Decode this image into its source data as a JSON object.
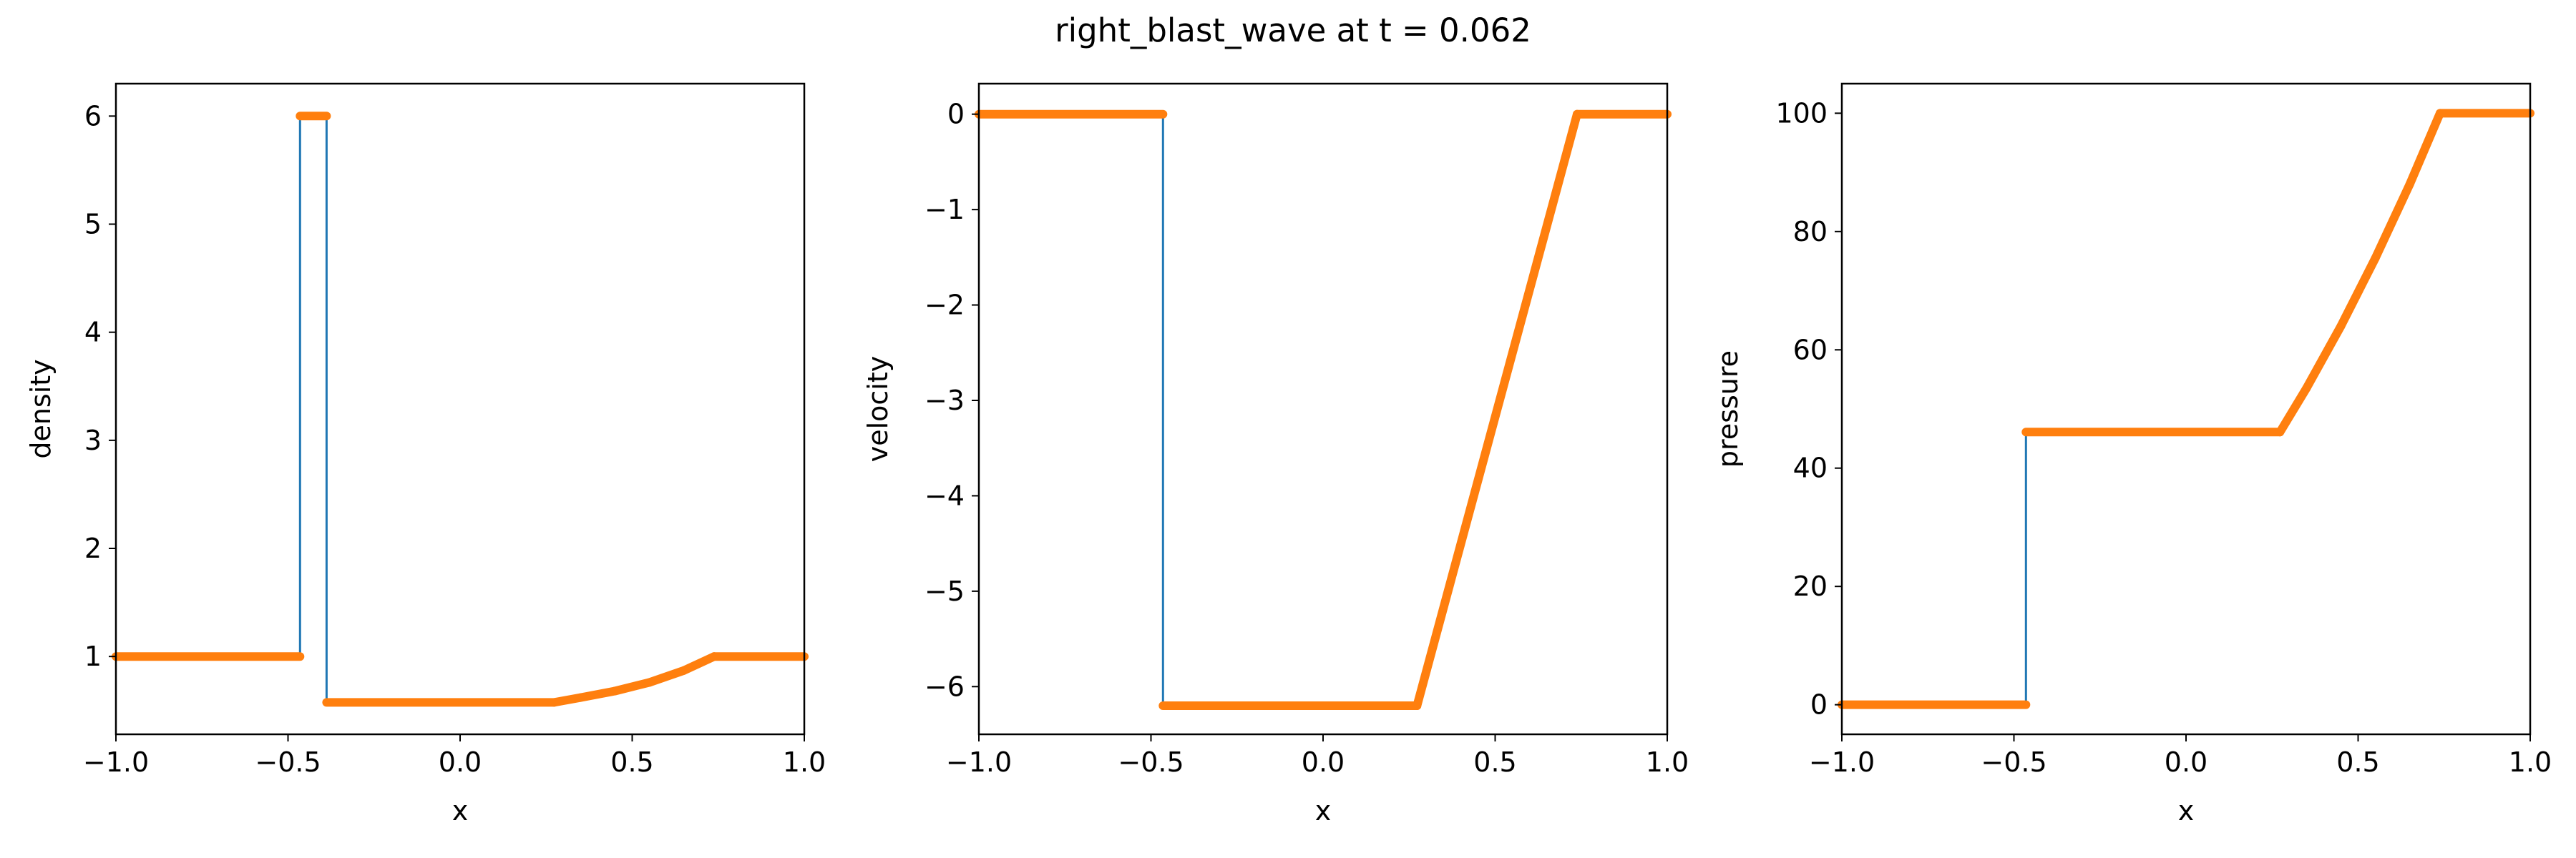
{
  "figure": {
    "title": "right_blast_wave at t = 0.062"
  },
  "colors": {
    "exact_line": "#1f77b4",
    "numerical_points": "#ff7f0e",
    "axes": "#000000",
    "background": "#ffffff"
  },
  "chart_data": [
    {
      "type": "line",
      "xlabel": "x",
      "ylabel": "density",
      "xlim": [
        -1.0,
        1.0
      ],
      "ylim": [
        0.28,
        6.3
      ],
      "xticks": [
        -1.0,
        -0.5,
        0.0,
        0.5,
        1.0
      ],
      "xtick_labels": [
        "−1.0",
        "−0.5",
        "0.0",
        "0.5",
        "1.0"
      ],
      "yticks": [
        1,
        2,
        3,
        4,
        5,
        6
      ],
      "ytick_labels": [
        "1",
        "2",
        "3",
        "4",
        "5",
        "6"
      ],
      "series": [
        {
          "kind": "exact",
          "points": [
            [
              -1.0,
              1.0
            ],
            [
              -0.465,
              1.0
            ],
            [
              -0.465,
              6.0
            ],
            [
              -0.388,
              6.0
            ],
            [
              -0.388,
              0.575
            ],
            [
              0.273,
              0.575
            ],
            [
              0.35,
              0.62
            ],
            [
              0.45,
              0.68
            ],
            [
              0.55,
              0.76
            ],
            [
              0.65,
              0.87
            ],
            [
              0.738,
              1.0
            ],
            [
              1.0,
              1.0
            ]
          ]
        },
        {
          "kind": "numerical",
          "points": [
            [
              -1.0,
              1.0
            ],
            [
              -0.465,
              1.0
            ],
            [
              -0.465,
              6.0
            ],
            [
              -0.388,
              6.0
            ],
            [
              -0.388,
              0.575
            ],
            [
              0.273,
              0.575
            ],
            [
              0.35,
              0.62
            ],
            [
              0.45,
              0.68
            ],
            [
              0.55,
              0.76
            ],
            [
              0.65,
              0.87
            ],
            [
              0.738,
              1.0
            ],
            [
              1.0,
              1.0
            ]
          ]
        }
      ]
    },
    {
      "type": "line",
      "xlabel": "x",
      "ylabel": "velocity",
      "xlim": [
        -1.0,
        1.0
      ],
      "ylim": [
        -6.5,
        0.32
      ],
      "xticks": [
        -1.0,
        -0.5,
        0.0,
        0.5,
        1.0
      ],
      "xtick_labels": [
        "−1.0",
        "−0.5",
        "0.0",
        "0.5",
        "1.0"
      ],
      "yticks": [
        -6,
        -5,
        -4,
        -3,
        -2,
        -1,
        0
      ],
      "ytick_labels": [
        "−6",
        "−5",
        "−4",
        "−3",
        "−2",
        "−1",
        "0"
      ],
      "series": [
        {
          "kind": "exact",
          "points": [
            [
              -1.0,
              0.0
            ],
            [
              -0.465,
              0.0
            ],
            [
              -0.465,
              -6.2
            ],
            [
              0.273,
              -6.2
            ],
            [
              0.738,
              0.0
            ],
            [
              1.0,
              0.0
            ]
          ]
        },
        {
          "kind": "numerical",
          "points": [
            [
              -1.0,
              0.0
            ],
            [
              -0.465,
              0.0
            ],
            [
              -0.465,
              -6.2
            ],
            [
              0.273,
              -6.2
            ],
            [
              0.738,
              0.0
            ],
            [
              1.0,
              0.0
            ]
          ]
        }
      ]
    },
    {
      "type": "line",
      "xlabel": "x",
      "ylabel": "pressure",
      "xlim": [
        -1.0,
        1.0
      ],
      "ylim": [
        -5.0,
        105.0
      ],
      "xticks": [
        -1.0,
        -0.5,
        0.0,
        0.5,
        1.0
      ],
      "xtick_labels": [
        "−1.0",
        "−0.5",
        "0.0",
        "0.5",
        "1.0"
      ],
      "yticks": [
        0,
        20,
        40,
        60,
        80,
        100
      ],
      "ytick_labels": [
        "0",
        "20",
        "40",
        "60",
        "80",
        "100"
      ],
      "series": [
        {
          "kind": "exact",
          "points": [
            [
              -1.0,
              0.0
            ],
            [
              -0.465,
              0.0
            ],
            [
              -0.465,
              46.1
            ],
            [
              0.273,
              46.1
            ],
            [
              0.35,
              53.5
            ],
            [
              0.45,
              64.0
            ],
            [
              0.55,
              75.5
            ],
            [
              0.65,
              88.0
            ],
            [
              0.738,
              100.0
            ],
            [
              1.0,
              100.0
            ]
          ]
        },
        {
          "kind": "numerical",
          "points": [
            [
              -1.0,
              0.0
            ],
            [
              -0.465,
              0.0
            ],
            [
              -0.465,
              46.1
            ],
            [
              0.273,
              46.1
            ],
            [
              0.35,
              53.5
            ],
            [
              0.45,
              64.0
            ],
            [
              0.55,
              75.5
            ],
            [
              0.65,
              88.0
            ],
            [
              0.738,
              100.0
            ],
            [
              1.0,
              100.0
            ]
          ]
        }
      ]
    }
  ]
}
